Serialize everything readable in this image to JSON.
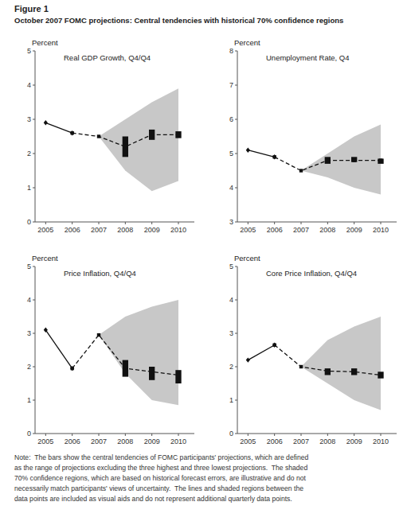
{
  "title": "Figure 1",
  "subtitle": "October 2007 FOMC projections: Central tendencies with historical 70% confidence regions",
  "note": "Note:  The bars show the central tendencies of FOMC participants' projections, which are defined\nas the range of projections excluding the three highest and three lowest projections.  The shaded\n70% confidence regions, which are based on historical forecast errors, are illustrative and do not\nnecessarily match participants' views of uncertainty.  The lines and shaded regions between the\ndata points are included as visual aids and do not represent additional quarterly data points.",
  "chart_data": [
    {
      "type": "line",
      "title": "Real GDP Growth, Q4/Q4",
      "ylabel": "Percent",
      "grid": false,
      "x": [
        2005,
        2006,
        2007,
        2008,
        2009,
        2010
      ],
      "xlim": [
        2004.6,
        2010.6
      ],
      "xticks": [
        2005,
        2006,
        2007,
        2008,
        2009,
        2010
      ],
      "ylim": [
        0,
        5
      ],
      "yticks": [
        0,
        1,
        2,
        3,
        4,
        5
      ],
      "series": [
        {
          "type": "area",
          "color": "#c8c8c8",
          "lower": [
            null,
            null,
            2.5,
            1.5,
            0.9,
            1.2
          ],
          "upper": [
            null,
            null,
            2.5,
            3.0,
            3.5,
            3.9
          ]
        },
        {
          "type": "line",
          "color": "#111111",
          "line_style": "solid",
          "marker": "diamond",
          "values": [
            2.9,
            2.6,
            null,
            null,
            null,
            null
          ]
        },
        {
          "type": "line",
          "color": "#111111",
          "line_style": "dashed",
          "marker": "square",
          "values": [
            null,
            2.6,
            2.5,
            2.2,
            2.55,
            2.55
          ]
        },
        {
          "type": "bar",
          "color": "#111111",
          "lower": [
            null,
            null,
            null,
            1.9,
            2.4,
            2.45
          ],
          "upper": [
            null,
            null,
            null,
            2.5,
            2.7,
            2.65
          ]
        }
      ]
    },
    {
      "type": "line",
      "title": "Unemployment Rate, Q4",
      "ylabel": "Percent",
      "grid": false,
      "x": [
        2005,
        2006,
        2007,
        2008,
        2009,
        2010
      ],
      "xlim": [
        2004.6,
        2010.6
      ],
      "xticks": [
        2005,
        2006,
        2007,
        2008,
        2009,
        2010
      ],
      "ylim": [
        3,
        8
      ],
      "yticks": [
        3,
        4,
        5,
        6,
        7,
        8
      ],
      "series": [
        {
          "type": "area",
          "color": "#c8c8c8",
          "lower": [
            null,
            null,
            4.5,
            4.3,
            4.0,
            3.8
          ],
          "upper": [
            null,
            null,
            4.5,
            5.0,
            5.5,
            5.85
          ]
        },
        {
          "type": "line",
          "color": "#111111",
          "line_style": "solid",
          "marker": "diamond",
          "values": [
            5.1,
            4.9,
            null,
            null,
            null,
            null
          ]
        },
        {
          "type": "line",
          "color": "#111111",
          "line_style": "dashed",
          "marker": "square",
          "values": [
            null,
            4.9,
            4.5,
            4.8,
            4.8,
            4.8
          ]
        },
        {
          "type": "bar",
          "color": "#111111",
          "lower": [
            null,
            null,
            null,
            4.7,
            4.75,
            4.7
          ],
          "upper": [
            null,
            null,
            null,
            4.9,
            4.9,
            4.85
          ]
        }
      ]
    },
    {
      "type": "line",
      "title": "Price Inflation, Q4/Q4",
      "ylabel": "Percent",
      "grid": false,
      "x": [
        2005,
        2006,
        2007,
        2008,
        2009,
        2010
      ],
      "xlim": [
        2004.6,
        2010.6
      ],
      "xticks": [
        2005,
        2006,
        2007,
        2008,
        2009,
        2010
      ],
      "ylim": [
        0,
        5
      ],
      "yticks": [
        0,
        1,
        2,
        3,
        4,
        5
      ],
      "series": [
        {
          "type": "area",
          "color": "#c8c8c8",
          "lower": [
            null,
            null,
            2.95,
            1.8,
            1.0,
            0.85
          ],
          "upper": [
            null,
            null,
            2.95,
            3.5,
            3.8,
            4.0
          ]
        },
        {
          "type": "line",
          "color": "#111111",
          "line_style": "solid",
          "marker": "diamond",
          "values": [
            3.1,
            1.95,
            null,
            null,
            null,
            null
          ]
        },
        {
          "type": "line",
          "color": "#111111",
          "line_style": "dashed",
          "marker": "square",
          "values": [
            null,
            1.95,
            2.95,
            1.95,
            1.85,
            1.75
          ]
        },
        {
          "type": "bar",
          "color": "#111111",
          "lower": [
            null,
            null,
            null,
            1.7,
            1.6,
            1.5
          ],
          "upper": [
            null,
            null,
            null,
            2.2,
            2.0,
            1.9
          ]
        }
      ]
    },
    {
      "type": "line",
      "title": "Core Price Inflation, Q4/Q4",
      "ylabel": "Percent",
      "grid": false,
      "x": [
        2005,
        2006,
        2007,
        2008,
        2009,
        2010
      ],
      "xlim": [
        2004.6,
        2010.6
      ],
      "xticks": [
        2005,
        2006,
        2007,
        2008,
        2009,
        2010
      ],
      "ylim": [
        0,
        5
      ],
      "yticks": [
        0,
        1,
        2,
        3,
        4,
        5
      ],
      "series": [
        {
          "type": "area",
          "color": "#c8c8c8",
          "lower": [
            null,
            null,
            2.0,
            1.5,
            1.0,
            0.7
          ],
          "upper": [
            null,
            null,
            2.0,
            2.8,
            3.2,
            3.5
          ]
        },
        {
          "type": "line",
          "color": "#111111",
          "line_style": "solid",
          "marker": "diamond",
          "values": [
            2.2,
            2.65,
            null,
            null,
            null,
            null
          ]
        },
        {
          "type": "line",
          "color": "#111111",
          "line_style": "dashed",
          "marker": "square",
          "values": [
            null,
            2.65,
            2.0,
            1.87,
            1.85,
            1.75
          ]
        },
        {
          "type": "bar",
          "color": "#111111",
          "lower": [
            null,
            null,
            null,
            1.75,
            1.75,
            1.65
          ],
          "upper": [
            null,
            null,
            null,
            1.95,
            1.95,
            1.85
          ]
        }
      ]
    }
  ]
}
